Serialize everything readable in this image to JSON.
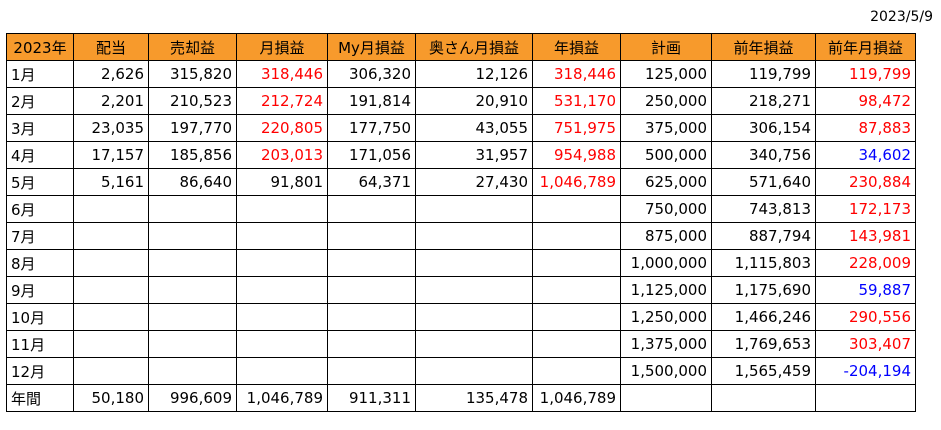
{
  "report_date": "2023/5/9",
  "colors": {
    "header_bg": "#f79a2c",
    "positive": "#ff0000",
    "negative": "#0000ff"
  },
  "headers": [
    "2023年",
    "配当",
    "売却益",
    "月損益",
    "My月損益",
    "奥さん月損益",
    "年損益",
    "計画",
    "前年損益",
    "前年月損益"
  ],
  "rows": [
    {
      "label": "1月",
      "cells": [
        "2,626",
        "315,820",
        "318,446",
        "306,320",
        "12,126",
        "318,446",
        "125,000",
        "119,799",
        "119,799"
      ]
    },
    {
      "label": "2月",
      "cells": [
        "2,201",
        "210,523",
        "212,724",
        "191,814",
        "20,910",
        "531,170",
        "250,000",
        "218,271",
        "98,472"
      ]
    },
    {
      "label": "3月",
      "cells": [
        "23,035",
        "197,770",
        "220,805",
        "177,750",
        "43,055",
        "751,975",
        "375,000",
        "306,154",
        "87,883"
      ]
    },
    {
      "label": "4月",
      "cells": [
        "17,157",
        "185,856",
        "203,013",
        "171,056",
        "31,957",
        "954,988",
        "500,000",
        "340,756",
        "34,602"
      ]
    },
    {
      "label": "5月",
      "cells": [
        "5,161",
        "86,640",
        "91,801",
        "64,371",
        "27,430",
        "1,046,789",
        "625,000",
        "571,640",
        "230,884"
      ]
    },
    {
      "label": "6月",
      "cells": [
        "",
        "",
        "",
        "",
        "",
        "",
        "750,000",
        "743,813",
        "172,173"
      ]
    },
    {
      "label": "7月",
      "cells": [
        "",
        "",
        "",
        "",
        "",
        "",
        "875,000",
        "887,794",
        "143,981"
      ]
    },
    {
      "label": "8月",
      "cells": [
        "",
        "",
        "",
        "",
        "",
        "",
        "1,000,000",
        "1,115,803",
        "228,009"
      ]
    },
    {
      "label": "9月",
      "cells": [
        "",
        "",
        "",
        "",
        "",
        "",
        "1,125,000",
        "1,175,690",
        "59,887"
      ]
    },
    {
      "label": "10月",
      "cells": [
        "",
        "",
        "",
        "",
        "",
        "",
        "1,250,000",
        "1,466,246",
        "290,556"
      ]
    },
    {
      "label": "11月",
      "cells": [
        "",
        "",
        "",
        "",
        "",
        "",
        "1,375,000",
        "1,769,653",
        "303,407"
      ]
    },
    {
      "label": "12月",
      "cells": [
        "",
        "",
        "",
        "",
        "",
        "",
        "1,500,000",
        "1,565,459",
        "-204,194"
      ]
    },
    {
      "label": "年間",
      "cells": [
        "50,180",
        "996,609",
        "1,046,789",
        "911,311",
        "135,478",
        "1,046,789",
        "",
        "",
        ""
      ]
    }
  ]
}
